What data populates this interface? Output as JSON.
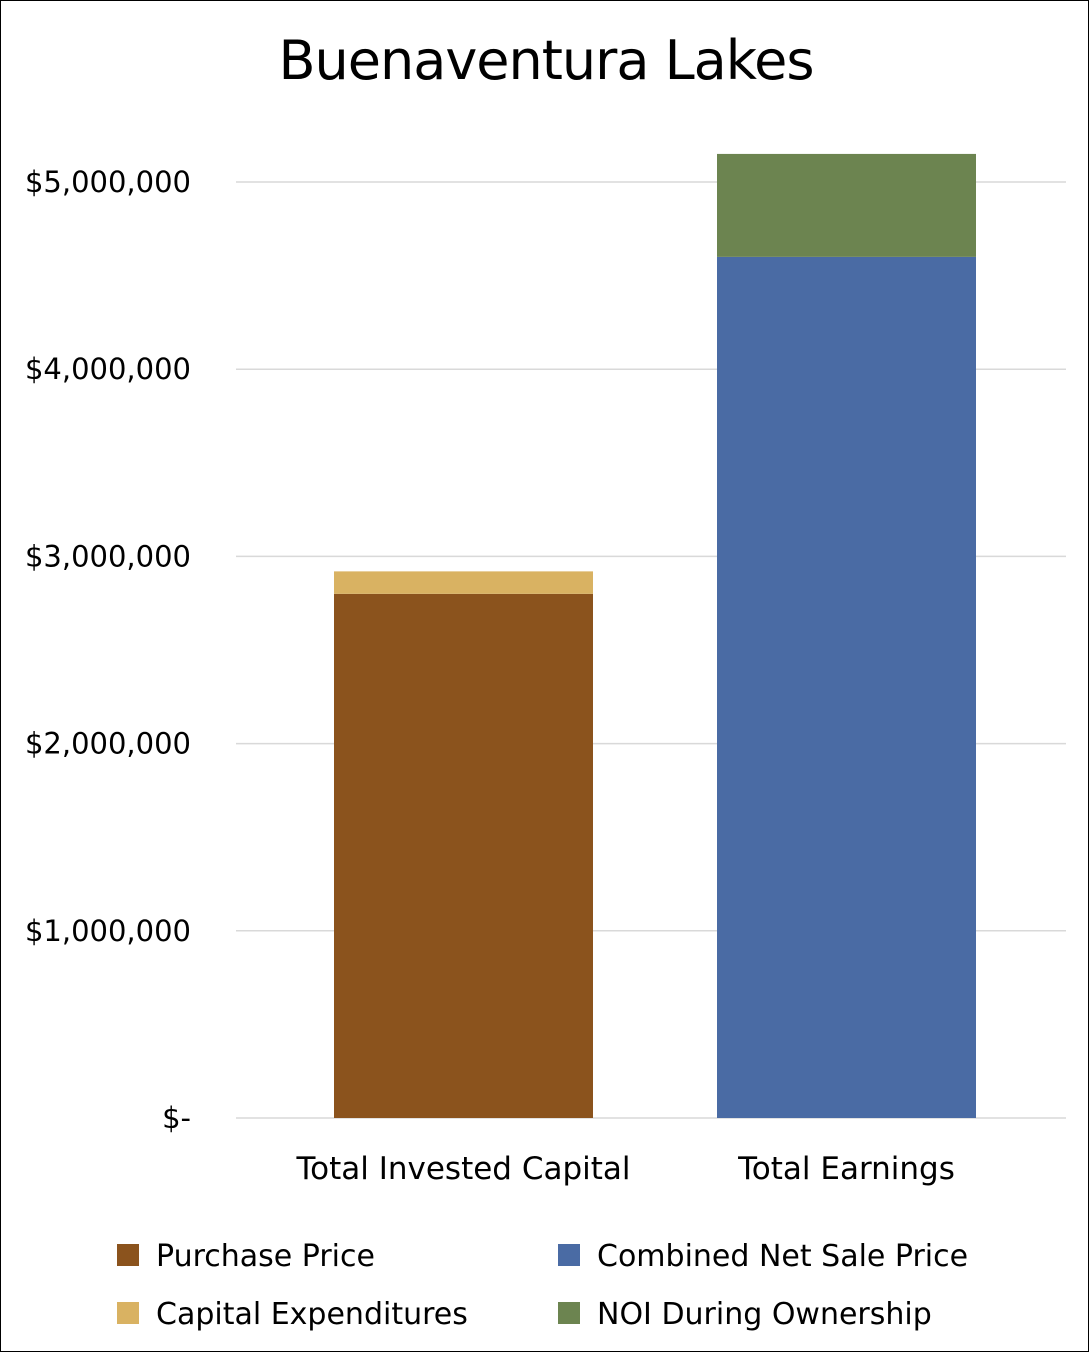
{
  "chart_data": {
    "type": "bar",
    "stacked": true,
    "title": "Buenaventura Lakes",
    "xlabel": "",
    "ylabel": "",
    "categories": [
      "Total Invested Capital",
      "Total Earnings"
    ],
    "series": [
      {
        "name": "Purchase Price",
        "values": [
          2800000,
          0
        ],
        "color": "#8b531d"
      },
      {
        "name": "Capital Expenditures",
        "values": [
          120000,
          0
        ],
        "color": "#d9b262"
      },
      {
        "name": "Combined Net Sale Price",
        "values": [
          0,
          4600000
        ],
        "color": "#4a6ba4"
      },
      {
        "name": "NOI During Ownership",
        "values": [
          0,
          550000
        ],
        "color": "#6c8450"
      }
    ],
    "ylim": [
      0,
      5000000
    ],
    "yticks": [
      {
        "value": 0,
        "label": "$-"
      },
      {
        "value": 1000000,
        "label": "$1,000,000"
      },
      {
        "value": 2000000,
        "label": "$2,000,000"
      },
      {
        "value": 3000000,
        "label": "$3,000,000"
      },
      {
        "value": 4000000,
        "label": "$4,000,000"
      },
      {
        "value": 5000000,
        "label": "$5,000,000"
      }
    ],
    "grid": true,
    "legend": {
      "position": "bottom",
      "columns": 2,
      "order": [
        "Purchase Price",
        "Combined Net Sale Price",
        "Capital Expenditures",
        "NOI During Ownership"
      ]
    }
  }
}
